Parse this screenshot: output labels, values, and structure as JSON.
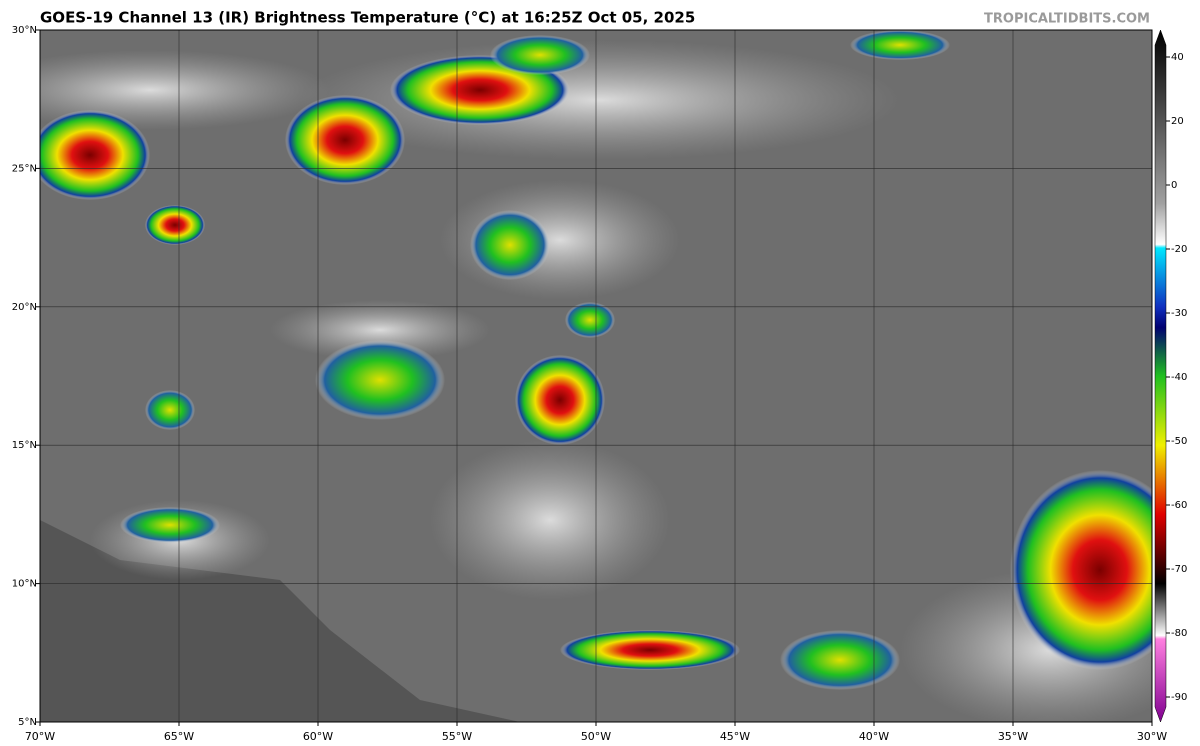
{
  "header": {
    "title": "GOES-19 Channel 13 (IR) Brightness Temperature (°C) at 16:25Z Oct 05, 2025",
    "watermark": "TROPICALTIDBITS.COM"
  },
  "map": {
    "xlim": [
      -70,
      -30
    ],
    "ylim": [
      5,
      30
    ],
    "lon_ticks": [
      {
        "value": -70,
        "label": "70°W"
      },
      {
        "value": -65,
        "label": "65°W"
      },
      {
        "value": -60,
        "label": "60°W"
      },
      {
        "value": -55,
        "label": "55°W"
      },
      {
        "value": -50,
        "label": "50°W"
      },
      {
        "value": -45,
        "label": "45°W"
      },
      {
        "value": -40,
        "label": "40°W"
      },
      {
        "value": -35,
        "label": "35°W"
      },
      {
        "value": -30,
        "label": "30°W"
      }
    ],
    "lat_ticks": [
      {
        "value": 5,
        "label": "5°N"
      },
      {
        "value": 10,
        "label": "10°N"
      },
      {
        "value": 15,
        "label": "15°N"
      },
      {
        "value": 20,
        "label": "20°N"
      },
      {
        "value": 25,
        "label": "25°N"
      },
      {
        "value": 30,
        "label": "30°N"
      }
    ]
  },
  "colorbar": {
    "ticks": [
      40,
      20,
      0,
      -20,
      -30,
      -40,
      -50,
      -60,
      -70,
      -80,
      -90
    ]
  }
}
